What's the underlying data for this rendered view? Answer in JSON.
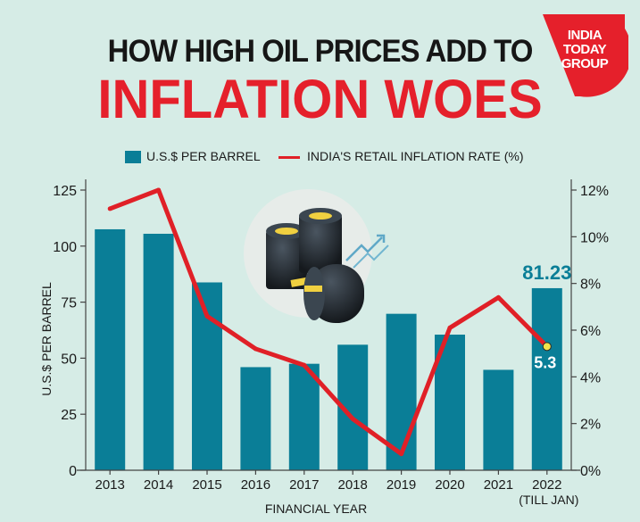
{
  "header": {
    "title_line1": "HOW HIGH OIL PRICES ADD TO",
    "title_line2": "INFLATION WOES"
  },
  "logo": {
    "line1": "INDIA",
    "line2": "TODAY",
    "line3": "GROUP"
  },
  "colors": {
    "bar": "#0a7e97",
    "line": "#e02027",
    "title_red": "#e5202b",
    "marker": "#f2e34a"
  },
  "chart_data": {
    "type": "bar",
    "categories": [
      "2013",
      "2014",
      "2015",
      "2016",
      "2017",
      "2018",
      "2019",
      "2020",
      "2021",
      "2022"
    ],
    "category_sublabels": [
      "",
      "",
      "",
      "",
      "",
      "",
      "",
      "",
      "",
      "(TILL JAN)"
    ],
    "series": [
      {
        "name": "U.S.$ PER BARREL",
        "axis": "left",
        "type": "bar",
        "values": [
          107.5,
          105.5,
          83.8,
          46,
          47.5,
          56,
          69.8,
          60.5,
          44.8,
          81.23
        ]
      },
      {
        "name": "INDIA'S RETAIL INFLATION RATE (%)",
        "axis": "right",
        "type": "line",
        "values": [
          11.2,
          12.0,
          6.6,
          5.2,
          4.5,
          2.2,
          0.7,
          6.1,
          7.4,
          5.3
        ]
      }
    ],
    "xlabel": "FINANCIAL YEAR",
    "ylabel": "U.S.$ PER BARREL",
    "ylim": [
      0,
      125
    ],
    "yticks": [
      "0",
      "25",
      "50",
      "75",
      "100",
      "125"
    ],
    "y2lim": [
      0,
      12
    ],
    "y2ticks": [
      "0%",
      "2%",
      "4%",
      "6%",
      "8%",
      "10%",
      "12%"
    ],
    "annotations": {
      "bar_label": "81.23",
      "line_label": "5.3"
    },
    "legend_position": "top"
  }
}
